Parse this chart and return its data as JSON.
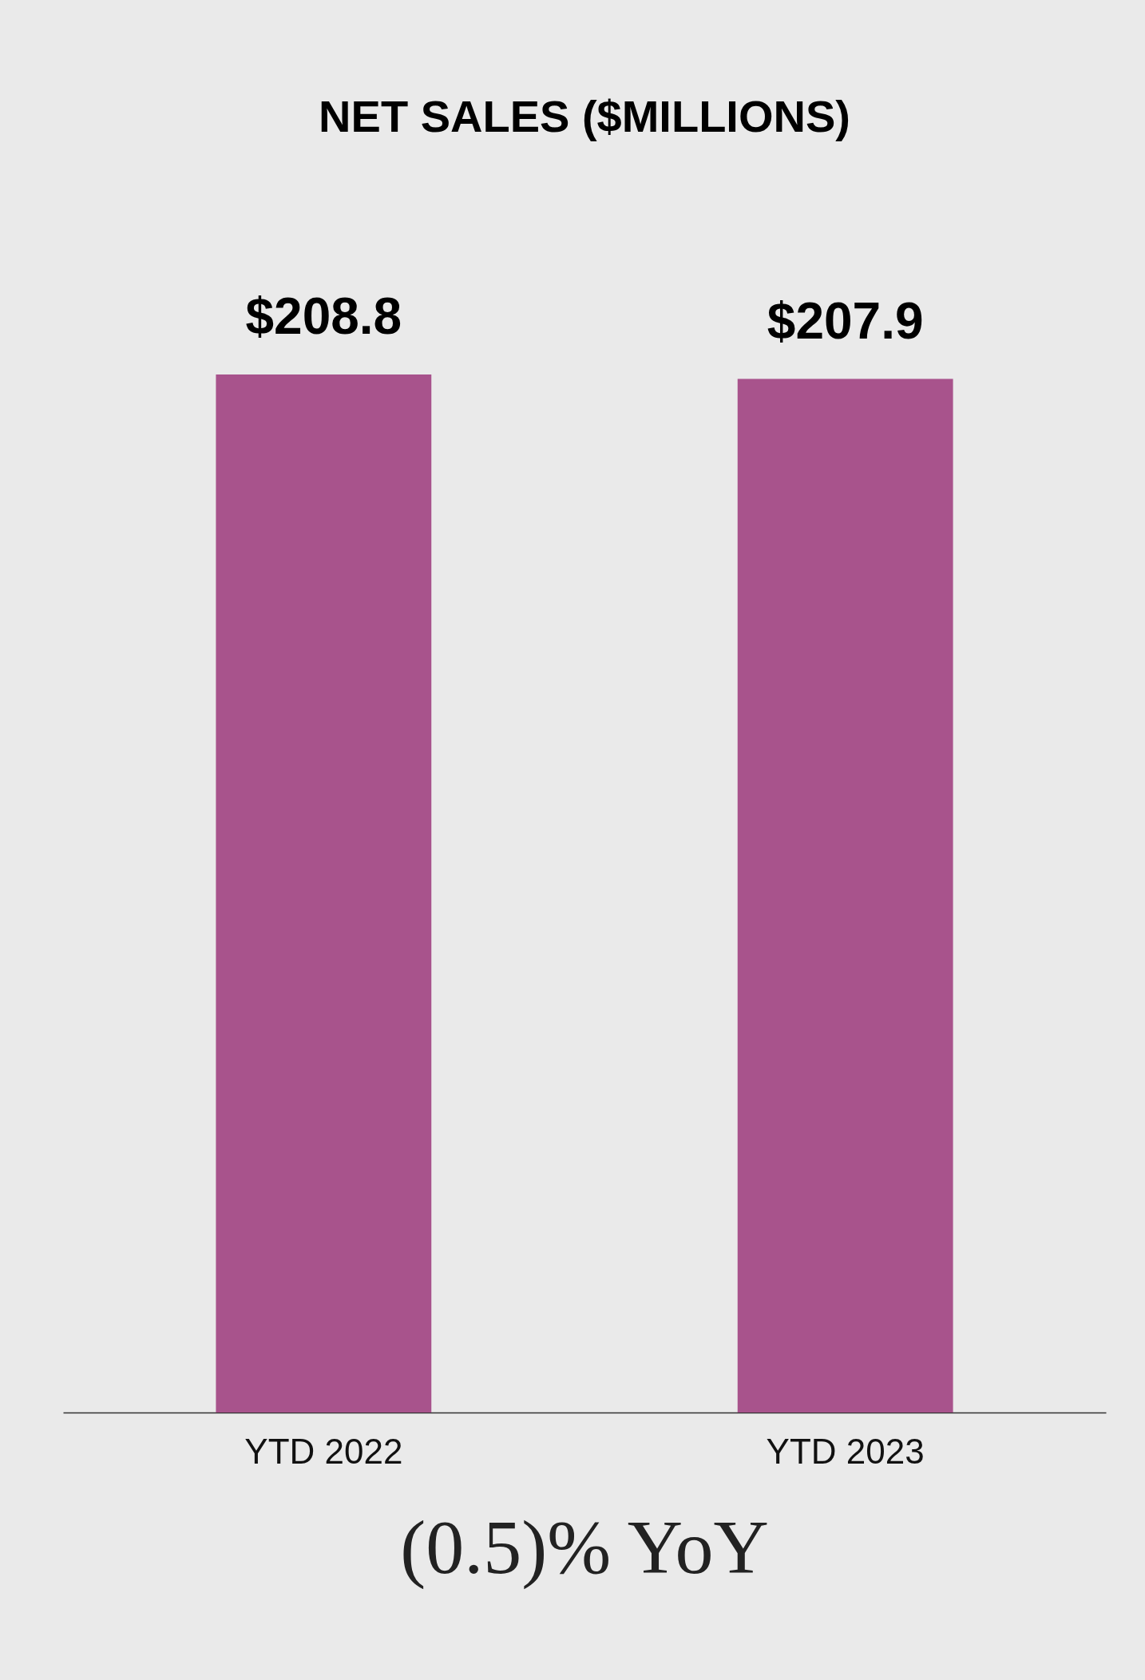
{
  "chart_data": {
    "type": "bar",
    "title": "NET SALES ($MILLIONS)",
    "categories": [
      "YTD 2022",
      "YTD 2023"
    ],
    "values": [
      208.8,
      207.9
    ],
    "value_labels": [
      "$208.8",
      "$207.9"
    ],
    "color": "#a8538c",
    "annotations": [
      "(0.5)% YoY"
    ]
  }
}
